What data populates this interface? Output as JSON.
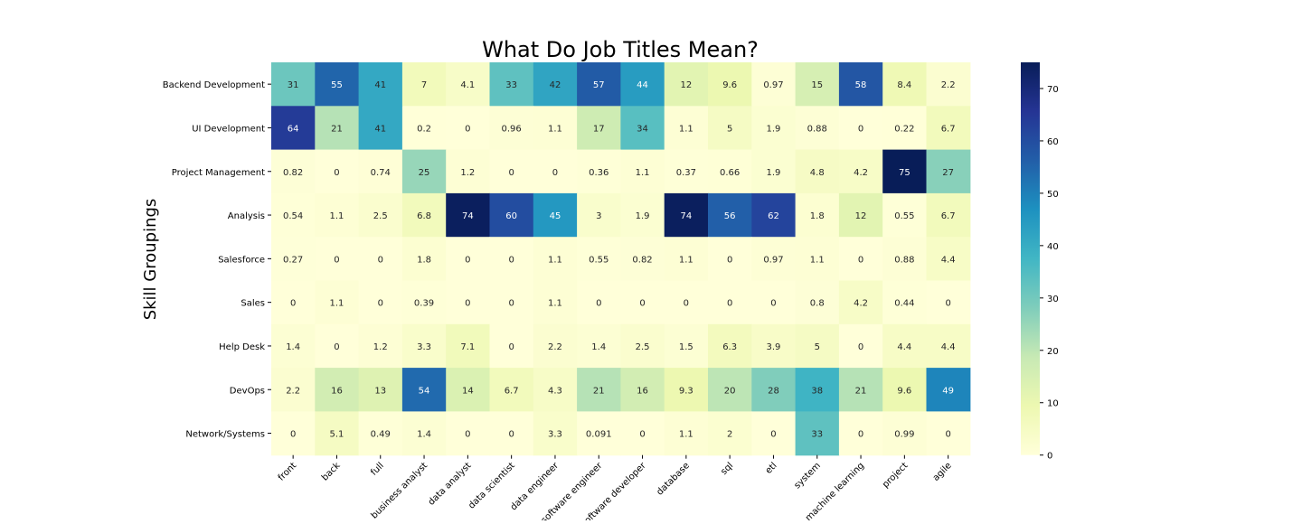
{
  "chart_data": {
    "type": "heatmap",
    "title": "What Do Job Titles Mean?",
    "ylabel": "Skill Groupings",
    "xlabel": "",
    "x_categories": [
      "front",
      "back",
      "full",
      "business analyst",
      "data analyst",
      "data scientist",
      "data engineer",
      "software engineer",
      "software developer",
      "database",
      "sql",
      "etl",
      "system",
      "machine learning",
      "project",
      "agile"
    ],
    "y_categories": [
      "Backend Development",
      "UI Development",
      "Project Management",
      "Analysis",
      "Salesforce",
      "Sales",
      "Help Desk",
      "DevOps",
      "Network/Systems"
    ],
    "values": [
      [
        31,
        55,
        41,
        7,
        4.1,
        33,
        42,
        57,
        44,
        12,
        9.6,
        0.97,
        15,
        58,
        8.4,
        2.2
      ],
      [
        64,
        21,
        41,
        0.2,
        0,
        0.96,
        1.1,
        17,
        34,
        1.1,
        5,
        1.9,
        0.88,
        0,
        0.22,
        6.7
      ],
      [
        0.82,
        0,
        0.74,
        25,
        1.2,
        0,
        0,
        0.36,
        1.1,
        0.37,
        0.66,
        1.9,
        4.8,
        4.2,
        75,
        27
      ],
      [
        0.54,
        1.1,
        2.5,
        6.8,
        74,
        60,
        45,
        3,
        1.9,
        74,
        56,
        62,
        1.8,
        12,
        0.55,
        6.7
      ],
      [
        0.27,
        0,
        0,
        1.8,
        0,
        0,
        1.1,
        0.55,
        0.82,
        1.1,
        0,
        0.97,
        1.1,
        0,
        0.88,
        4.4
      ],
      [
        0,
        1.1,
        0,
        0.39,
        0,
        0,
        1.1,
        0,
        0,
        0,
        0,
        0,
        0.8,
        4.2,
        0.44,
        0
      ],
      [
        1.4,
        0,
        1.2,
        3.3,
        7.1,
        0,
        2.2,
        1.4,
        2.5,
        1.5,
        6.3,
        3.9,
        5,
        0,
        4.4,
        4.4
      ],
      [
        2.2,
        16,
        13,
        54,
        14,
        6.7,
        4.3,
        21,
        16,
        9.3,
        20,
        28,
        38,
        21,
        9.6,
        49
      ],
      [
        0,
        5.1,
        0.49,
        1.4,
        0,
        0,
        3.3,
        0.091,
        0,
        1.1,
        2,
        0,
        33,
        0,
        0.99,
        0
      ]
    ],
    "colorscale": "YlGnBu",
    "vmin": 0,
    "vmax": 75,
    "colorbar_ticks": [
      0,
      10,
      20,
      30,
      40,
      50,
      60,
      70
    ],
    "annotations": true,
    "grid": false
  }
}
